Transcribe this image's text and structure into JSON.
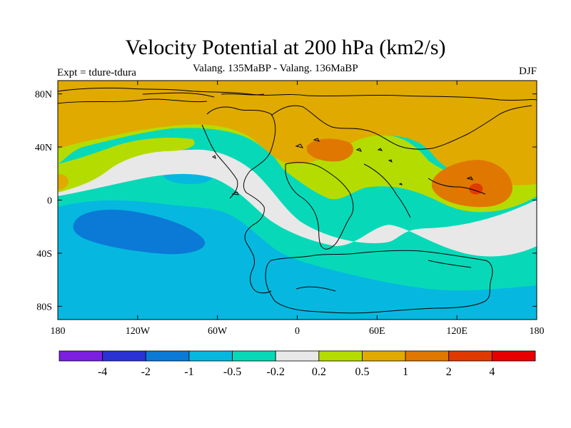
{
  "title": "Velocity Potential at 200 hPa (km2/s)",
  "subtitle": "Valang.  135MaBP - Valang.  136MaBP",
  "left_label": "Expt = tdure-tdura",
  "right_label": "DJF",
  "x_axis": {
    "ticks": [
      {
        "lon": -180,
        "label": "180"
      },
      {
        "lon": -120,
        "label": "120W"
      },
      {
        "lon": -60,
        "label": "60W"
      },
      {
        "lon": 0,
        "label": "0"
      },
      {
        "lon": 60,
        "label": "60E"
      },
      {
        "lon": 120,
        "label": "120E"
      },
      {
        "lon": 180,
        "label": "180"
      }
    ]
  },
  "y_axis": {
    "ticks": [
      {
        "lat": 80,
        "label": "80N"
      },
      {
        "lat": 40,
        "label": "40N"
      },
      {
        "lat": 0,
        "label": "0"
      },
      {
        "lat": -40,
        "label": "40S"
      },
      {
        "lat": -80,
        "label": "80S"
      }
    ]
  },
  "colorbar": {
    "colors": [
      "#7b1fe0",
      "#2a32d6",
      "#0a7ad6",
      "#06b8e0",
      "#07d9b8",
      "#e8e8e8",
      "#b5dc00",
      "#e0aa00",
      "#e07700",
      "#e03a00",
      "#e80000"
    ],
    "labels": [
      "-4",
      "-2",
      "-1",
      "-0.5",
      "-0.2",
      "0.2",
      "0.5",
      "1",
      "2",
      "4"
    ]
  },
  "colors": {
    "c_neg1": "#0a7ad6",
    "c_neg05": "#06b8e0",
    "c_neg02": "#07d9b8",
    "c_zero": "#e8e8e8",
    "c_pos02": "#b5dc00",
    "c_pos05": "#e0aa00",
    "c_pos1": "#e07700",
    "c_pos2": "#e03a00"
  }
}
